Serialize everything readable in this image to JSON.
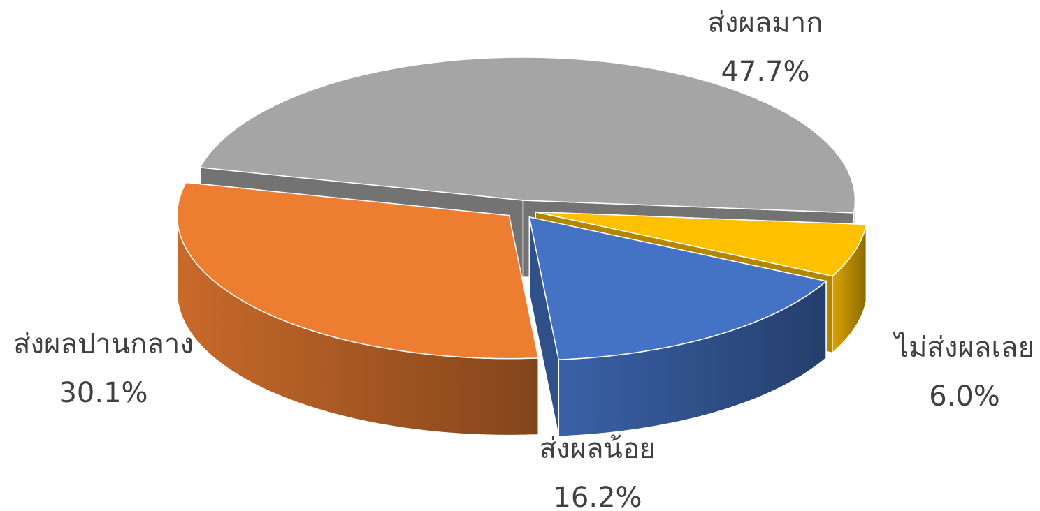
{
  "chart_data": {
    "type": "pie",
    "categories": [
      "ส่งผลมาก",
      "ไม่ส่งผลเลย",
      "ส่งผลน้อย",
      "ส่งผลปานกลาง"
    ],
    "values": [
      47.7,
      6.0,
      16.2,
      30.1
    ],
    "value_labels": [
      "47.7%",
      "6.0%",
      "16.2%",
      "30.1%"
    ],
    "colors": [
      "#a5a5a5",
      "#ffc000",
      "#4472c4",
      "#ed7d31"
    ]
  }
}
